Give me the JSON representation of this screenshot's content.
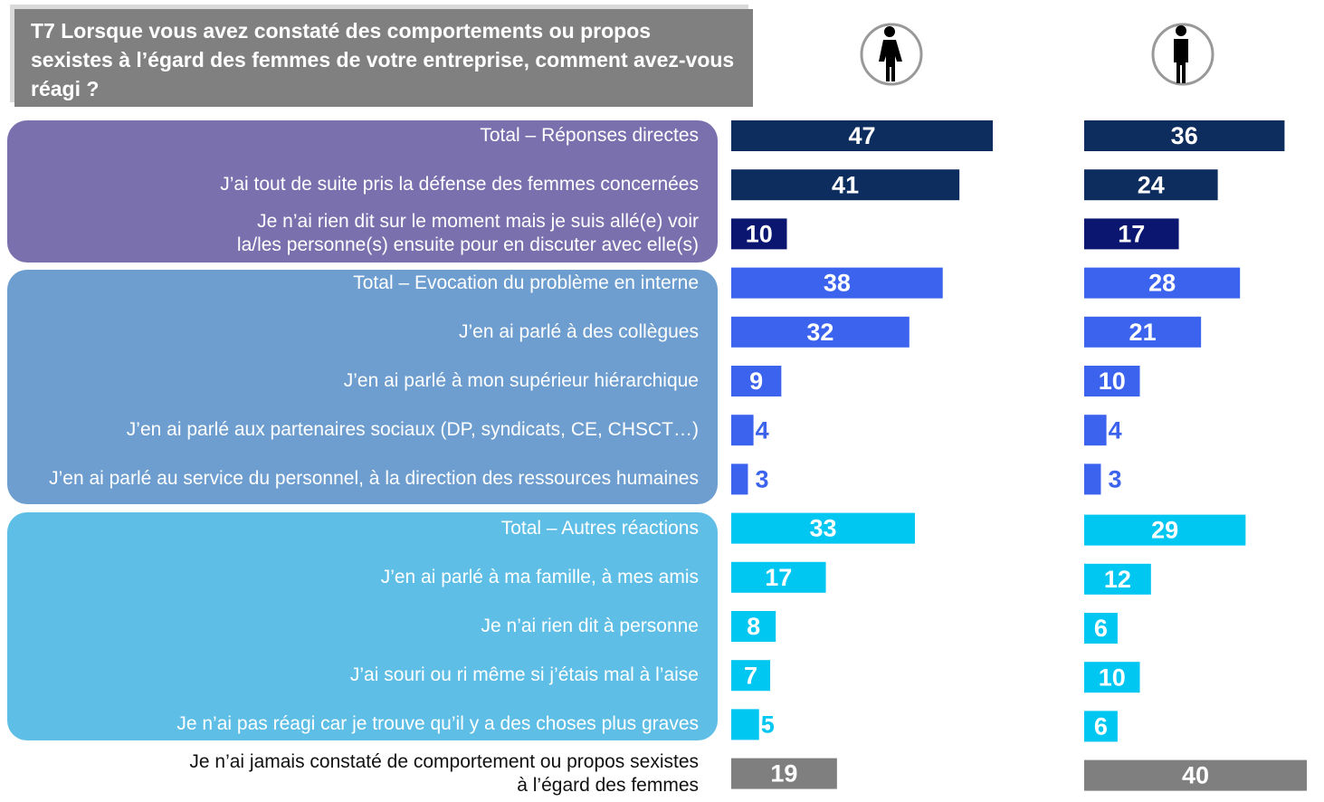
{
  "chart_data": {
    "type": "bar",
    "orientation": "horizontal",
    "title": "T7 Lorsque vous avez constaté des comportements ou propos sexistes à l’égard des femmes de votre entreprise, comment avez-vous réagi ?",
    "categories": [
      "Total – Réponses directes",
      "J’ai tout de suite pris la défense des femmes concernées",
      "Je n’ai rien dit sur le moment mais je suis allé(e) voir\nla/les personne(s) ensuite pour en discuter avec elle(s)",
      "Total – Evocation du problème en interne",
      "J’en ai parlé à des collègues",
      "J’en ai parlé à mon supérieur hiérarchique",
      "J’en ai parlé aux partenaires sociaux (DP, syndicats, CE, CHSCT…)",
      "J’en ai parlé au service du personnel, à la direction des ressources humaines",
      "Total – Autres réactions",
      "J’en ai parlé à ma famille, à mes amis",
      "Je n’ai rien dit à personne",
      "J’ai souri ou ri même si j’étais mal à l’aise",
      "Je n’ai pas réagi car je trouve qu’il y a des choses plus graves",
      "Je n’ai jamais constaté de comportement ou propos sexistes\nà l’égard des femmes"
    ],
    "colors": [
      "#0c2d5e",
      "#0c2d5e",
      "#0a1670",
      "#3b63ee",
      "#3b63ee",
      "#3b63ee",
      "#3b63ee",
      "#3b63ee",
      "#00c6f2",
      "#00c6f2",
      "#00c6f2",
      "#00c6f2",
      "#00c6f2",
      "#7f7f7f"
    ],
    "series": [
      {
        "values": [
          47,
          41,
          10,
          38,
          32,
          9,
          4,
          3,
          33,
          17,
          8,
          7,
          5,
          19
        ]
      },
      {
        "values": [
          36,
          24,
          17,
          28,
          21,
          10,
          4,
          3,
          29,
          12,
          6,
          10,
          6,
          40
        ]
      }
    ]
  }
}
